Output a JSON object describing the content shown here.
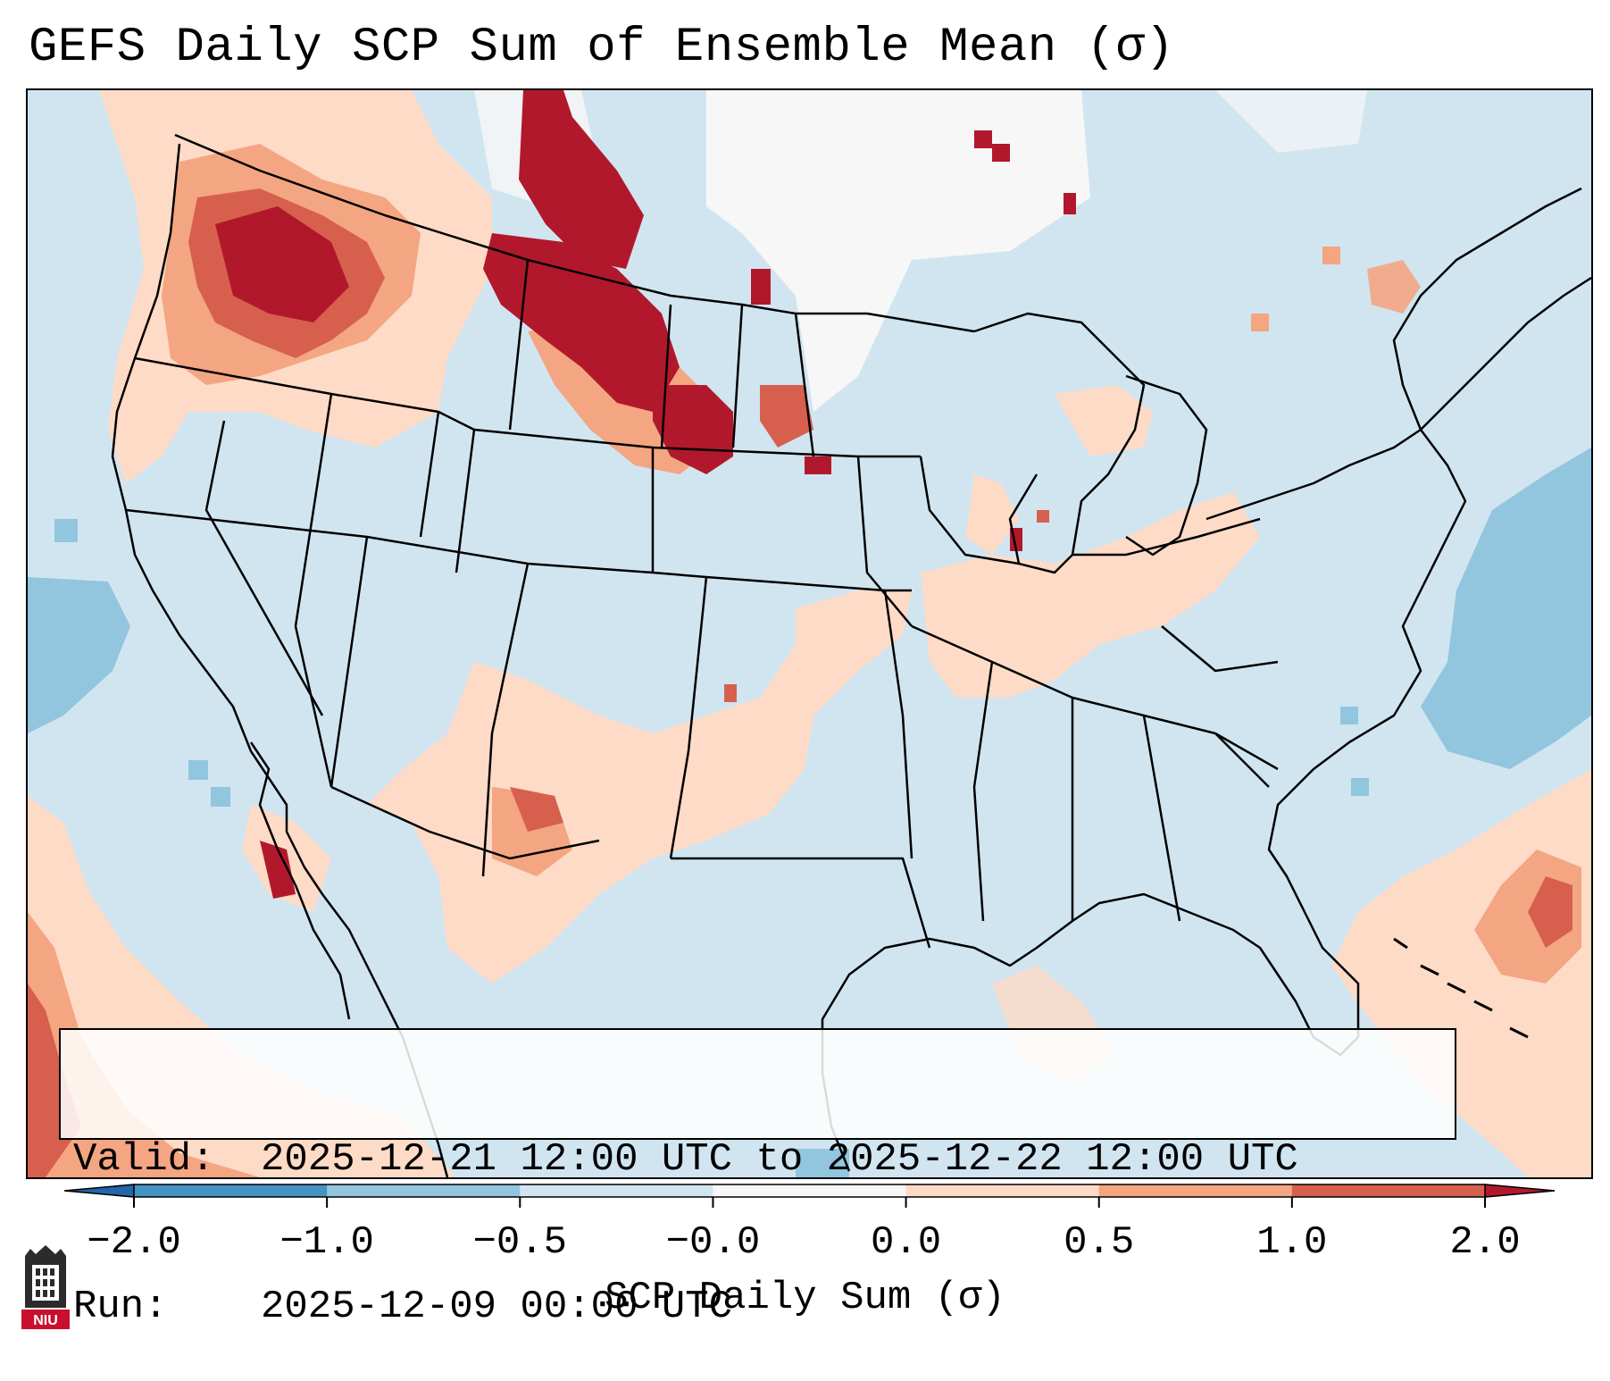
{
  "title": "GEFS Daily SCP Sum of Ensemble Mean (σ)",
  "valid": {
    "label": "Valid:",
    "value": "2025-12-21 12:00 UTC to 2025-12-22 12:00 UTC"
  },
  "run": {
    "label": "Run:",
    "value": "2025-12-09 00:00 UTC"
  },
  "colorbar": {
    "label": "SCP Daily Sum (σ)",
    "ticks": [
      "−2.0",
      "−1.0",
      "−0.5",
      "−0.0",
      "0.0",
      "0.5",
      "1.0",
      "2.0"
    ],
    "bins": [
      {
        "range": "<-2.0",
        "color": "#2166ac"
      },
      {
        "range": "-2.0 to -1.0",
        "color": "#4393c3"
      },
      {
        "range": "-1.0 to -0.5",
        "color": "#92c5de"
      },
      {
        "range": "-0.5 to -0.0",
        "color": "#d1e5f0"
      },
      {
        "range": "-0.0 to 0.0",
        "color": "#f7f7f7"
      },
      {
        "range": "0.0 to 0.5",
        "color": "#fddbc7"
      },
      {
        "range": "0.5 to 1.0",
        "color": "#f4a582"
      },
      {
        "range": "1.0 to 2.0",
        "color": "#d6604d"
      },
      {
        "range": ">2.0",
        "color": "#b2182b"
      }
    ]
  },
  "logo": {
    "text": "NIU",
    "name": "Northern Illinois University"
  }
}
